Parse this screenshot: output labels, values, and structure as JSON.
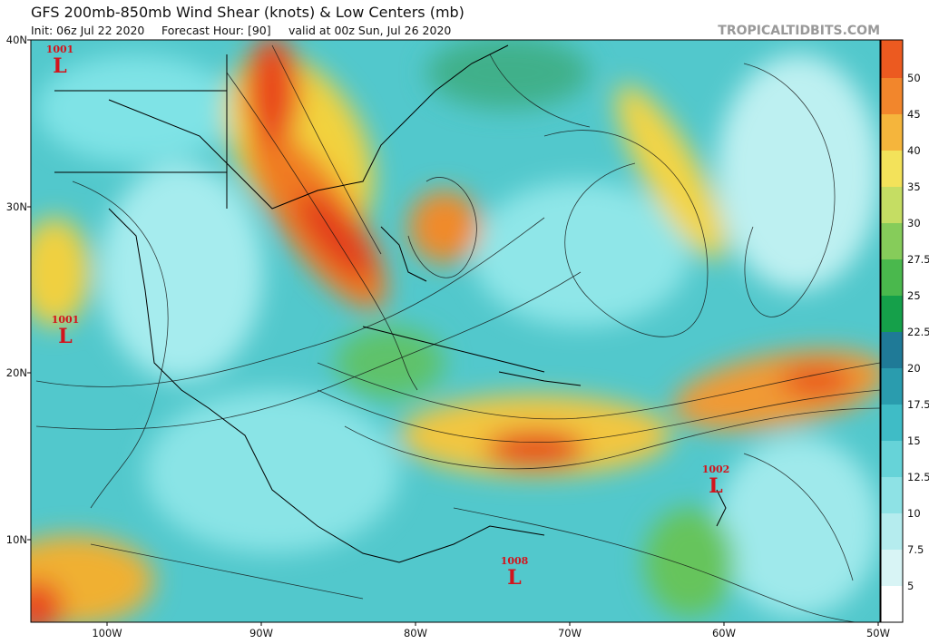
{
  "header": {
    "title": "GFS 200mb-850mb Wind Shear (knots) & Low Centers (mb)",
    "init": "Init: 06z Jul 22 2020",
    "forecast": "Forecast Hour: [90]",
    "valid": "valid at 00z Sun, Jul 26 2020",
    "site": "TROPICALTIDBITS.COM"
  },
  "map": {
    "lat_labels": [
      "40N",
      "30N",
      "20N",
      "10N"
    ],
    "lon_labels": [
      "100W",
      "90W",
      "80W",
      "70W",
      "60W",
      "50W"
    ],
    "lows": [
      {
        "pressure": "1001",
        "symbol": "L"
      },
      {
        "pressure": "1001",
        "symbol": "L"
      },
      {
        "pressure": "1002",
        "symbol": "L"
      },
      {
        "pressure": "1008",
        "symbol": "L"
      }
    ]
  },
  "colorbar": {
    "labels": [
      "5",
      "7.5",
      "10",
      "12.5",
      "15",
      "17.5",
      "20",
      "22.5",
      "25",
      "27.5",
      "30",
      "35",
      "40",
      "45",
      "50"
    ]
  }
}
